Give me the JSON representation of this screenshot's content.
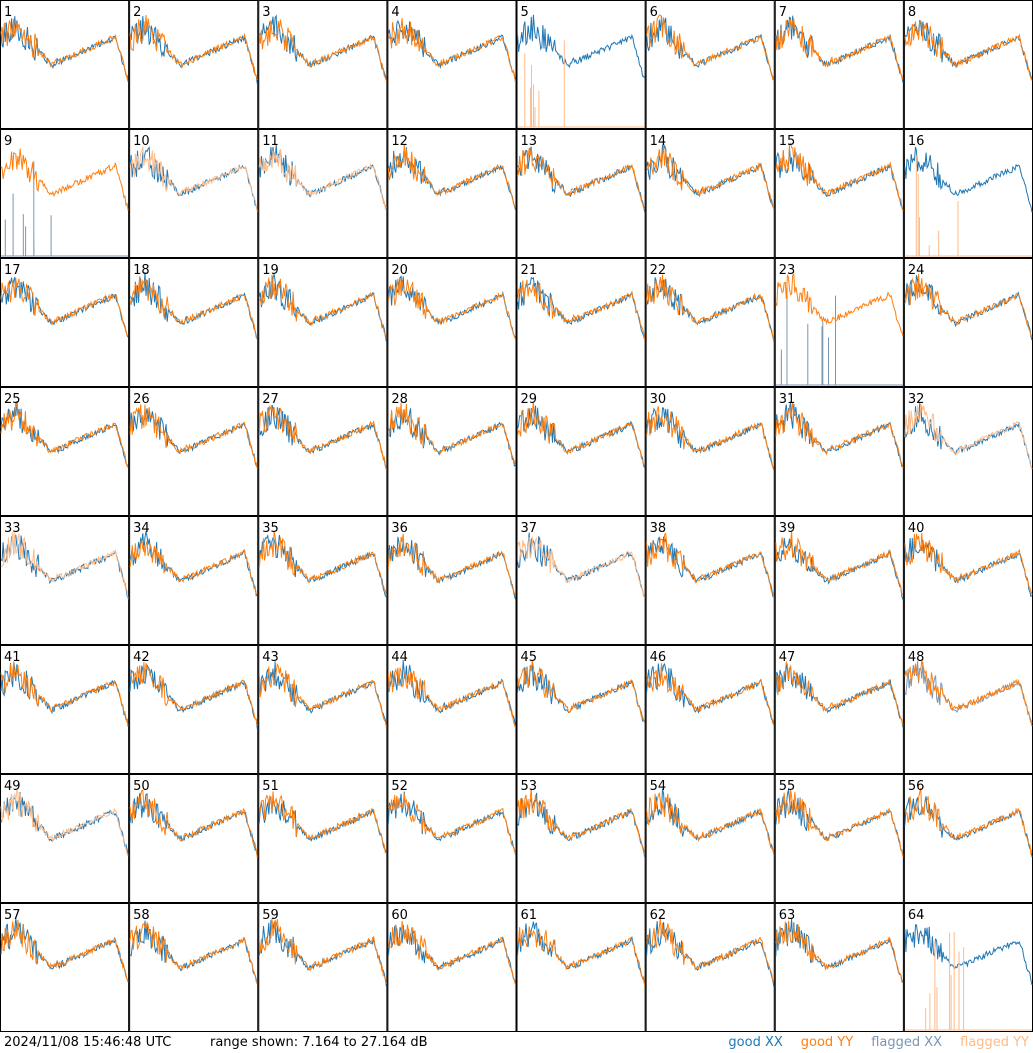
{
  "footer": {
    "timestamp": "2024/11/08 15:46:48 UTC",
    "range_label": "range shown: 7.164 to 27.164 dB"
  },
  "legend": [
    {
      "label": "good XX",
      "color": "#1f77b4"
    },
    {
      "label": "good YY",
      "color": "#ff7f0e"
    },
    {
      "label": "flagged XX",
      "color": "#7a96b4"
    },
    {
      "label": "flagged YY",
      "color": "#ffbb88"
    }
  ],
  "chart_data": {
    "type": "line",
    "grid_rows": 8,
    "grid_cols": 8,
    "y_range_db": [
      7.164,
      27.164
    ],
    "series_names": [
      "good XX",
      "good YY",
      "flagged XX",
      "flagged YY"
    ],
    "panels": [
      {
        "id": 1,
        "xx_state": "good",
        "yy_state": "good"
      },
      {
        "id": 2,
        "xx_state": "good",
        "yy_state": "good"
      },
      {
        "id": 3,
        "xx_state": "good",
        "yy_state": "good"
      },
      {
        "id": 4,
        "xx_state": "good",
        "yy_state": "good"
      },
      {
        "id": 5,
        "xx_state": "good",
        "yy_state": "flagged"
      },
      {
        "id": 6,
        "xx_state": "good",
        "yy_state": "good"
      },
      {
        "id": 7,
        "xx_state": "good",
        "yy_state": "good"
      },
      {
        "id": 8,
        "xx_state": "good",
        "yy_state": "good"
      },
      {
        "id": 9,
        "xx_state": "flagged",
        "yy_state": "good"
      },
      {
        "id": 10,
        "xx_state": "good",
        "yy_state": "flagged"
      },
      {
        "id": 11,
        "xx_state": "good",
        "yy_state": "flagged"
      },
      {
        "id": 12,
        "xx_state": "good",
        "yy_state": "good"
      },
      {
        "id": 13,
        "xx_state": "good",
        "yy_state": "good"
      },
      {
        "id": 14,
        "xx_state": "good",
        "yy_state": "good"
      },
      {
        "id": 15,
        "xx_state": "good",
        "yy_state": "good"
      },
      {
        "id": 16,
        "xx_state": "good",
        "yy_state": "flagged"
      },
      {
        "id": 17,
        "xx_state": "good",
        "yy_state": "good"
      },
      {
        "id": 18,
        "xx_state": "good",
        "yy_state": "good"
      },
      {
        "id": 19,
        "xx_state": "good",
        "yy_state": "good"
      },
      {
        "id": 20,
        "xx_state": "good",
        "yy_state": "good"
      },
      {
        "id": 21,
        "xx_state": "good",
        "yy_state": "good"
      },
      {
        "id": 22,
        "xx_state": "good",
        "yy_state": "good"
      },
      {
        "id": 23,
        "xx_state": "flagged",
        "yy_state": "good"
      },
      {
        "id": 24,
        "xx_state": "good",
        "yy_state": "good"
      },
      {
        "id": 25,
        "xx_state": "good",
        "yy_state": "good"
      },
      {
        "id": 26,
        "xx_state": "good",
        "yy_state": "good"
      },
      {
        "id": 27,
        "xx_state": "good",
        "yy_state": "good"
      },
      {
        "id": 28,
        "xx_state": "good",
        "yy_state": "good"
      },
      {
        "id": 29,
        "xx_state": "good",
        "yy_state": "good"
      },
      {
        "id": 30,
        "xx_state": "good",
        "yy_state": "good"
      },
      {
        "id": 31,
        "xx_state": "good",
        "yy_state": "good"
      },
      {
        "id": 32,
        "xx_state": "good",
        "yy_state": "flagged"
      },
      {
        "id": 33,
        "xx_state": "good",
        "yy_state": "flagged"
      },
      {
        "id": 34,
        "xx_state": "good",
        "yy_state": "good"
      },
      {
        "id": 35,
        "xx_state": "good",
        "yy_state": "good"
      },
      {
        "id": 36,
        "xx_state": "good",
        "yy_state": "good"
      },
      {
        "id": 37,
        "xx_state": "good",
        "yy_state": "flagged"
      },
      {
        "id": 38,
        "xx_state": "good",
        "yy_state": "good"
      },
      {
        "id": 39,
        "xx_state": "good",
        "yy_state": "good"
      },
      {
        "id": 40,
        "xx_state": "good",
        "yy_state": "good"
      },
      {
        "id": 41,
        "xx_state": "good",
        "yy_state": "good"
      },
      {
        "id": 42,
        "xx_state": "good",
        "yy_state": "good"
      },
      {
        "id": 43,
        "xx_state": "good",
        "yy_state": "good"
      },
      {
        "id": 44,
        "xx_state": "good",
        "yy_state": "good"
      },
      {
        "id": 45,
        "xx_state": "good",
        "yy_state": "good"
      },
      {
        "id": 46,
        "xx_state": "good",
        "yy_state": "good"
      },
      {
        "id": 47,
        "xx_state": "good",
        "yy_state": "good"
      },
      {
        "id": 48,
        "xx_state": "flagged",
        "yy_state": "good"
      },
      {
        "id": 49,
        "xx_state": "good",
        "yy_state": "flagged"
      },
      {
        "id": 50,
        "xx_state": "good",
        "yy_state": "good"
      },
      {
        "id": 51,
        "xx_state": "good",
        "yy_state": "good"
      },
      {
        "id": 52,
        "xx_state": "good",
        "yy_state": "good"
      },
      {
        "id": 53,
        "xx_state": "good",
        "yy_state": "good"
      },
      {
        "id": 54,
        "xx_state": "good",
        "yy_state": "good"
      },
      {
        "id": 55,
        "xx_state": "good",
        "yy_state": "good"
      },
      {
        "id": 56,
        "xx_state": "good",
        "yy_state": "good"
      },
      {
        "id": 57,
        "xx_state": "good",
        "yy_state": "good"
      },
      {
        "id": 58,
        "xx_state": "good",
        "yy_state": "good"
      },
      {
        "id": 59,
        "xx_state": "good",
        "yy_state": "good"
      },
      {
        "id": 60,
        "xx_state": "good",
        "yy_state": "good"
      },
      {
        "id": 61,
        "xx_state": "good",
        "yy_state": "good"
      },
      {
        "id": 62,
        "xx_state": "good",
        "yy_state": "good"
      },
      {
        "id": 63,
        "xx_state": "good",
        "yy_state": "good"
      },
      {
        "id": 64,
        "xx_state": "good",
        "yy_state": "flagged"
      }
    ]
  }
}
